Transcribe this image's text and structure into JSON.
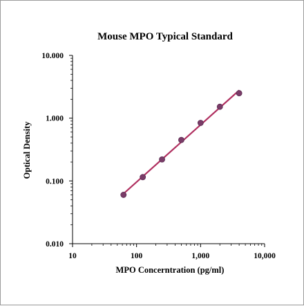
{
  "chart_data": {
    "type": "scatter",
    "title": "Mouse MPO Typical Standard",
    "xlabel": "MPO Concerntration (pg/ml)",
    "ylabel": "Optical Density",
    "x_scale": "log",
    "y_scale": "log",
    "xlim": [
      10,
      10000
    ],
    "ylim": [
      0.01,
      10
    ],
    "x_ticks": [
      10,
      100,
      1000,
      10000
    ],
    "x_tick_labels": [
      "10",
      "100",
      "1,000",
      "10,000"
    ],
    "y_ticks": [
      0.01,
      0.1,
      1,
      10
    ],
    "y_tick_labels": [
      "0.010",
      "0.100",
      "1.000",
      "10.000"
    ],
    "grid": false,
    "series": [
      {
        "x": [
          62.5,
          125,
          250,
          500,
          1000,
          2000,
          4000
        ],
        "y": [
          0.06,
          0.115,
          0.22,
          0.45,
          0.84,
          1.52,
          2.5
        ]
      }
    ],
    "fit_line": {
      "type": "power",
      "color": "#b03060"
    },
    "marker_color": "#7a3c68"
  }
}
